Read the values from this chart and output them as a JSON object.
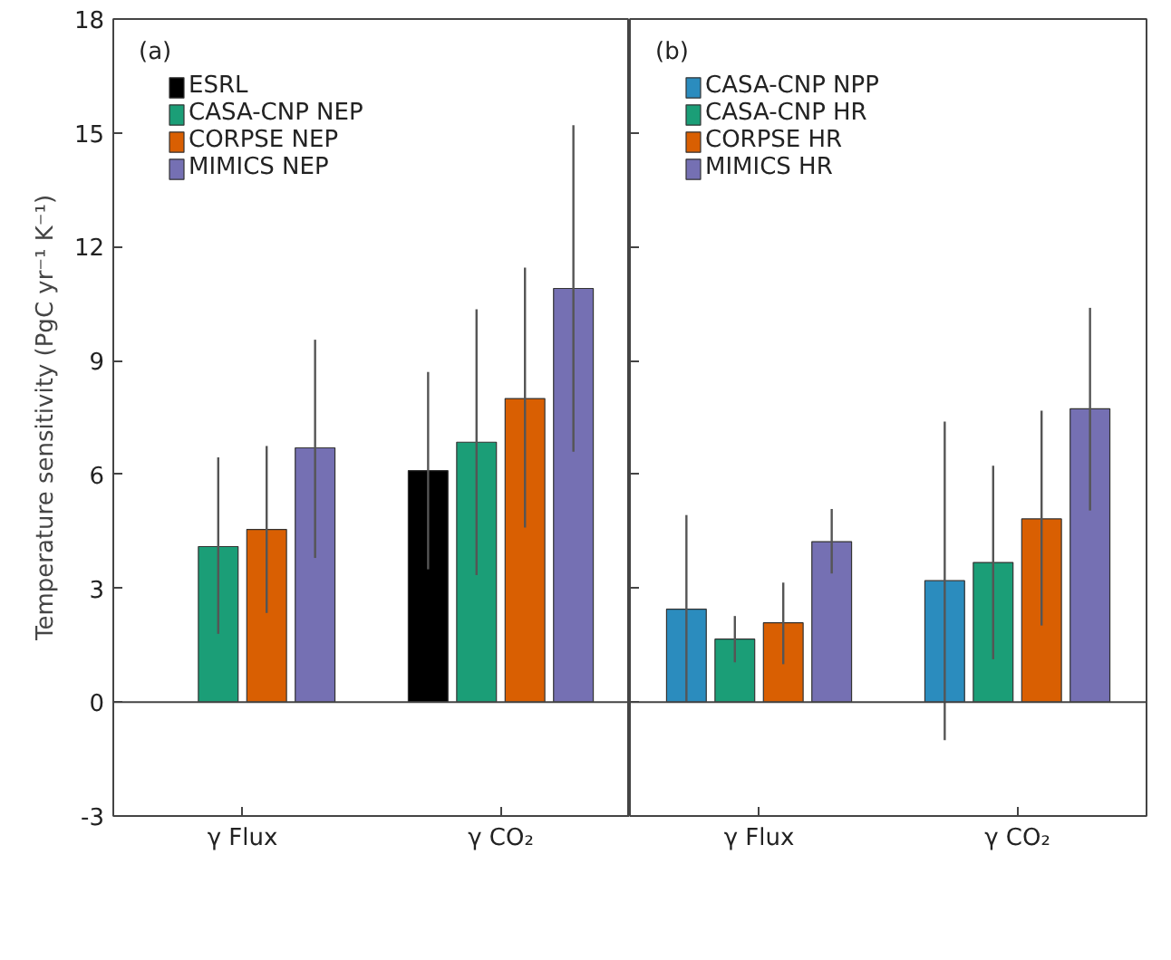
{
  "chart_data": [
    {
      "type": "bar",
      "title": "(a)",
      "ylabel": "Temperature sensitivity (PgC yr⁻¹ K⁻¹)",
      "categories": [
        "γ Flux",
        "γ CO₂"
      ],
      "ylim": [
        -3,
        18
      ],
      "yticks": [
        -3,
        0,
        3,
        6,
        9,
        12,
        15,
        18
      ],
      "legend": "top left",
      "grid": false,
      "ref_lines": [
        {
          "axis": "y",
          "value": 0
        }
      ],
      "series": [
        {
          "name": "ESRL",
          "color": "#000000",
          "values": [
            null,
            6.1
          ],
          "errors": [
            null,
            [
              3.5,
              8.7
            ]
          ]
        },
        {
          "name": "CASA-CNP NEP",
          "color": "#1b9e77",
          "values": [
            4.1,
            6.85
          ],
          "errors": [
            [
              1.8,
              6.45
            ],
            [
              3.35,
              10.35
            ]
          ]
        },
        {
          "name": "CORPSE NEP",
          "color": "#d95f02",
          "values": [
            4.55,
            8.0
          ],
          "errors": [
            [
              2.35,
              6.75
            ],
            [
              4.6,
              11.45
            ]
          ]
        },
        {
          "name": "MIMICS NEP",
          "color": "#7570b3",
          "values": [
            6.7,
            10.9
          ],
          "errors": [
            [
              3.8,
              9.55
            ],
            [
              6.6,
              15.2
            ]
          ]
        }
      ]
    },
    {
      "type": "bar",
      "title": "(b)",
      "categories": [
        "γ Flux",
        "γ CO₂"
      ],
      "ylim": [
        -3,
        18
      ],
      "yticks": [
        -3,
        0,
        3,
        6,
        9,
        12,
        15,
        18
      ],
      "legend": "top left",
      "grid": false,
      "tick_labels": "x",
      "ref_lines": [
        {
          "axis": "y",
          "value": 0
        }
      ],
      "series": [
        {
          "name": "CASA-CNP NPP",
          "color": "#2b8cbe",
          "values": [
            2.45,
            3.2
          ],
          "errors": [
            [
              0,
              4.93
            ],
            [
              -1.0,
              7.39
            ]
          ]
        },
        {
          "name": "CASA-CNP HR",
          "color": "#1b9e77",
          "values": [
            1.66,
            3.68
          ],
          "errors": [
            [
              1.05,
              2.27
            ],
            [
              1.13,
              6.23
            ]
          ]
        },
        {
          "name": "CORPSE HR",
          "color": "#d95f02",
          "values": [
            2.09,
            4.83
          ],
          "errors": [
            [
              1.0,
              3.15
            ],
            [
              2.02,
              7.68
            ]
          ]
        },
        {
          "name": "MIMICS HR",
          "color": "#7570b3",
          "values": [
            4.23,
            7.73
          ],
          "errors": [
            [
              3.39,
              5.09
            ],
            [
              5.05,
              10.39
            ]
          ]
        }
      ]
    }
  ]
}
